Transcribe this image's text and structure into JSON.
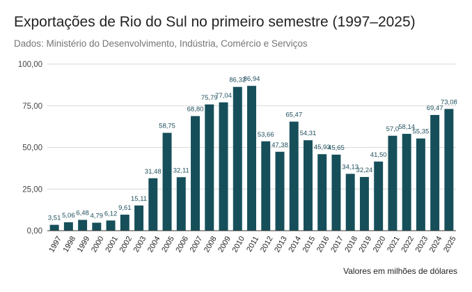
{
  "title": "Exportações de Rio do Sul no primeiro semestre (1997–2025)",
  "subtitle": "Dados: Ministério do Desenvolvimento, Indústria, Comércio e Serviços",
  "footnote": "Valores em milhões de dólares",
  "colors": {
    "bar": "#164f5a",
    "grid": "#d9d9d9",
    "axis": "#333333",
    "label": "#1e4f5c"
  },
  "chart_data": {
    "type": "bar",
    "title": "Exportações de Rio do Sul no primeiro semestre (1997–2025)",
    "xlabel": "",
    "ylabel": "",
    "ylim": [
      0,
      100
    ],
    "yticks": [
      "0,00",
      "25,00",
      "50,00",
      "75,00",
      "100,00"
    ],
    "grid": true,
    "categories": [
      "1997",
      "1998",
      "1999",
      "2000",
      "2001",
      "2002",
      "2003",
      "2004",
      "2005",
      "2006",
      "2007",
      "2008",
      "2009",
      "2010",
      "2011",
      "2012",
      "2013",
      "2014",
      "2015",
      "2016",
      "2017",
      "2018",
      "2019",
      "2020",
      "2021",
      "2022",
      "2023",
      "2024",
      "2025"
    ],
    "values": [
      3.51,
      5.06,
      6.48,
      4.79,
      6.12,
      9.61,
      15.11,
      31.48,
      58.75,
      32.11,
      68.8,
      75.79,
      77.04,
      86.32,
      86.94,
      53.66,
      47.38,
      65.47,
      54.31,
      45.93,
      45.65,
      34.13,
      32.24,
      41.5,
      57.0,
      58.14,
      55.35,
      69.47,
      73.08
    ],
    "data_labels": [
      "3,51",
      "5,06",
      "6,48",
      "4,79",
      "6,12",
      "9,61",
      "15,11",
      "31,48",
      "58,75",
      "32,11",
      "68,80",
      "75,79",
      "77,04",
      "86,32",
      "86,94",
      "53,66",
      "47,38",
      "65,47",
      "54,31",
      "45,93",
      "45,65",
      "34,13",
      "32,24",
      "41,50",
      "57,0",
      "58,14",
      "55,35",
      "69,47",
      "73,08"
    ]
  }
}
